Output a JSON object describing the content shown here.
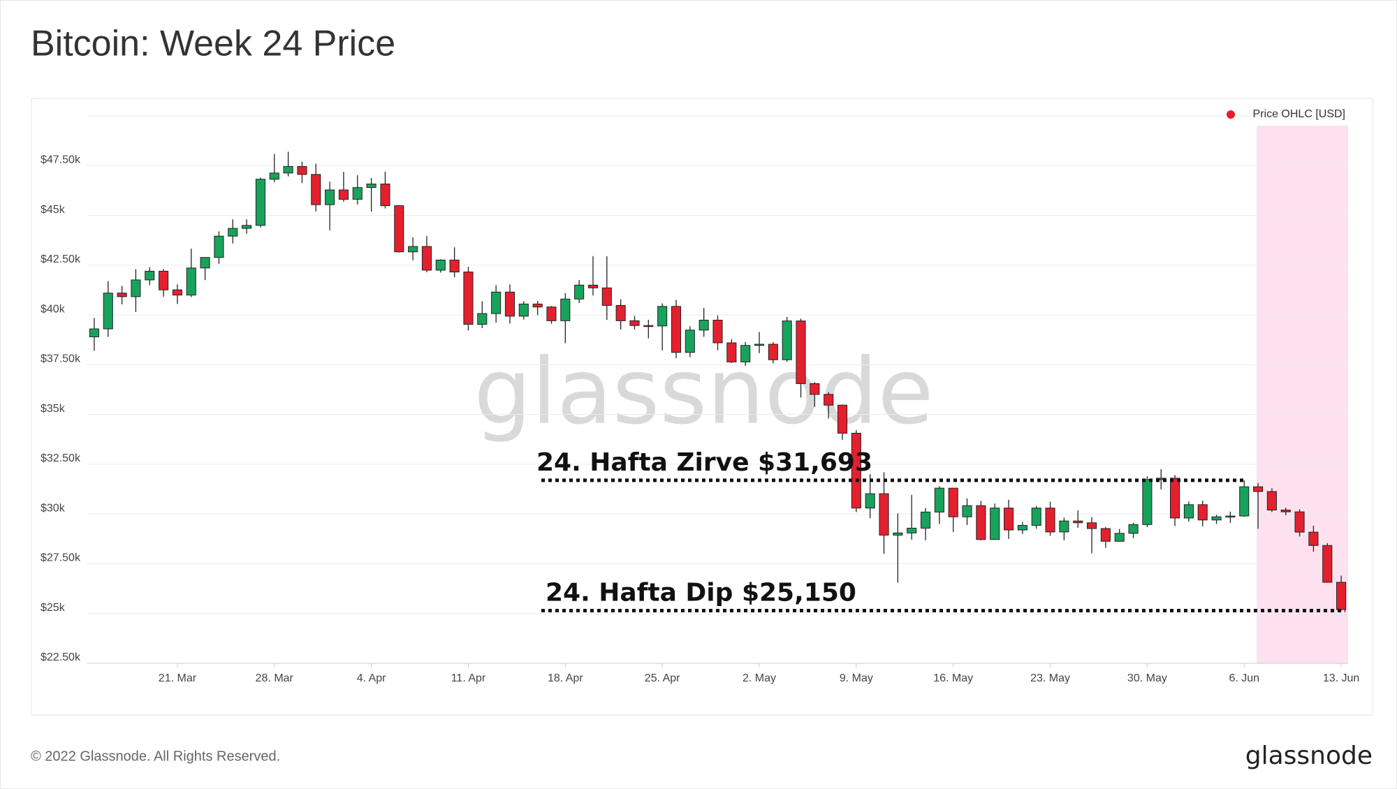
{
  "chart_data": {
    "type": "candlestick",
    "title": "Bitcoin: Week 24 Price",
    "x": [
      null,
      null,
      null,
      null,
      null,
      null,
      "21. Mar",
      null,
      null,
      null,
      null,
      null,
      null,
      "28. Mar",
      null,
      null,
      null,
      null,
      null,
      null,
      "4. Apr",
      null,
      null,
      null,
      null,
      null,
      null,
      "11. Apr",
      null,
      null,
      null,
      null,
      null,
      null,
      "18. Apr",
      null,
      null,
      null,
      null,
      null,
      null,
      "25. Apr",
      null,
      null,
      null,
      null,
      null,
      null,
      "2. May",
      null,
      null,
      null,
      null,
      null,
      null,
      "9. May",
      null,
      null,
      null,
      null,
      null,
      null,
      "16. May",
      null,
      null,
      null,
      null,
      null,
      null,
      "23. May",
      null,
      null,
      null,
      null,
      null,
      null,
      "30. May",
      null,
      null,
      null,
      null,
      null,
      null,
      "6. Jun",
      null,
      null,
      null,
      null,
      null,
      null,
      "13. Jun"
    ],
    "series": [
      {
        "name": "Price OHLC [USD]",
        "color": "#e5202e",
        "up_color": "#17a35c",
        "open": [
          38900,
          39300,
          41100,
          40920,
          41760,
          42200,
          41260,
          41000,
          42360,
          42890,
          43960,
          44350,
          44500,
          46820,
          47130,
          47460,
          47060,
          45540,
          46280,
          45810,
          46400,
          46580,
          45490,
          43170,
          43440,
          42250,
          42760,
          42160,
          39530,
          40070,
          41150,
          39940,
          40550,
          40400,
          39710,
          40800,
          41500,
          41360,
          40480,
          39710,
          39470,
          39450,
          40430,
          38120,
          39240,
          39740,
          38600,
          37640,
          38470,
          38530,
          37750,
          39700,
          36550,
          36010,
          35470,
          34060,
          30300,
          31020,
          28940,
          29050,
          29290,
          30100,
          31300,
          29860,
          30420,
          28720,
          30300,
          29200,
          29430,
          30300,
          29100,
          29650,
          29560,
          29270,
          28630,
          29030,
          29470,
          31730,
          31800,
          29800,
          30470,
          29700,
          29860,
          29900,
          31370,
          31130,
          30200,
          30110,
          29090,
          28420,
          26570
        ],
        "high": [
          39850,
          41700,
          41460,
          42300,
          42400,
          42300,
          41540,
          43330,
          42900,
          44200,
          44800,
          44800,
          46900,
          48090,
          48200,
          47700,
          47600,
          46700,
          47190,
          47020,
          46880,
          47200,
          45520,
          43900,
          43960,
          42800,
          43400,
          42420,
          40690,
          41500,
          41540,
          40690,
          40700,
          40450,
          41100,
          41750,
          42960,
          42950,
          40780,
          39950,
          39760,
          40580,
          40760,
          39440,
          40350,
          39980,
          38790,
          38640,
          39140,
          38630,
          39900,
          39820,
          36620,
          36120,
          35500,
          34220,
          32000,
          32100,
          30030,
          30960,
          30300,
          31400,
          31310,
          30780,
          30660,
          30530,
          30720,
          29600,
          30400,
          30620,
          29820,
          30180,
          29840,
          29350,
          29250,
          29560,
          31900,
          32250,
          31960,
          30630,
          30670,
          29960,
          30120,
          31693,
          31560,
          31300,
          30320,
          30240,
          29410,
          28540,
          26900
        ],
        "low": [
          38200,
          38900,
          40530,
          40150,
          41500,
          40920,
          40550,
          40900,
          41750,
          42570,
          43590,
          44080,
          44400,
          46670,
          46960,
          46620,
          45200,
          44250,
          45690,
          45550,
          45190,
          45350,
          43140,
          42750,
          42150,
          42130,
          41900,
          39220,
          39340,
          39620,
          39570,
          39770,
          39990,
          39560,
          38580,
          40600,
          40980,
          39750,
          39270,
          39270,
          38820,
          38220,
          37830,
          37880,
          38900,
          38230,
          37590,
          37450,
          38080,
          37560,
          37650,
          35850,
          35380,
          34800,
          33720,
          30100,
          29790,
          28000,
          26550,
          28710,
          28680,
          29500,
          29100,
          29450,
          28680,
          28720,
          28750,
          29000,
          29260,
          28900,
          28680,
          29310,
          28030,
          28300,
          28610,
          28790,
          29340,
          31240,
          29400,
          29620,
          29380,
          29500,
          29550,
          29860,
          29260,
          30100,
          29940,
          28870,
          28100,
          26560,
          25150
        ],
        "close": [
          39300,
          41100,
          40920,
          41760,
          42200,
          41260,
          41000,
          42360,
          42890,
          43960,
          44350,
          44500,
          46820,
          47130,
          47460,
          47060,
          45540,
          46280,
          45810,
          46400,
          46580,
          45490,
          43170,
          43440,
          42250,
          42760,
          42160,
          39530,
          40070,
          41150,
          39940,
          40550,
          40400,
          39710,
          40800,
          41500,
          41360,
          40480,
          39710,
          39470,
          39450,
          40430,
          38120,
          39240,
          39740,
          38600,
          37640,
          38470,
          38530,
          37750,
          39700,
          36550,
          36010,
          35470,
          34060,
          30300,
          31020,
          28940,
          29050,
          29290,
          30100,
          31300,
          29860,
          30420,
          28720,
          30300,
          29200,
          29430,
          30300,
          29100,
          29650,
          29560,
          29270,
          28630,
          29030,
          29470,
          31730,
          31800,
          29800,
          30470,
          29700,
          29860,
          29900,
          31370,
          31130,
          30200,
          30110,
          29090,
          28420,
          26570,
          25200
        ]
      }
    ],
    "ylim": [
      22500,
      50000
    ],
    "yticks": [
      {
        "value": 22500,
        "label": "$22.50k"
      },
      {
        "value": 25000,
        "label": "$25k"
      },
      {
        "value": 27500,
        "label": "$27.50k"
      },
      {
        "value": 30000,
        "label": "$30k"
      },
      {
        "value": 32500,
        "label": "$32.50k"
      },
      {
        "value": 35000,
        "label": "$35k"
      },
      {
        "value": 37500,
        "label": "$37.50k"
      },
      {
        "value": 40000,
        "label": "$40k"
      },
      {
        "value": 42500,
        "label": "$42.50k"
      },
      {
        "value": 45000,
        "label": "$45k"
      },
      {
        "value": 47500,
        "label": "$47.50k"
      }
    ],
    "grid": true,
    "legend": "top-right",
    "highlight_color": "#fde1ee",
    "annotations": [
      {
        "text": "24. Hafta Zirve $31,693",
        "value": 31693
      },
      {
        "text": "24. Hafta Dip $25,150",
        "value": 25150
      }
    ],
    "watermark": "glassnode"
  },
  "footer": {
    "copyright": "© 2022 Glassnode. All Rights Reserved.",
    "logo": "glassnode"
  }
}
